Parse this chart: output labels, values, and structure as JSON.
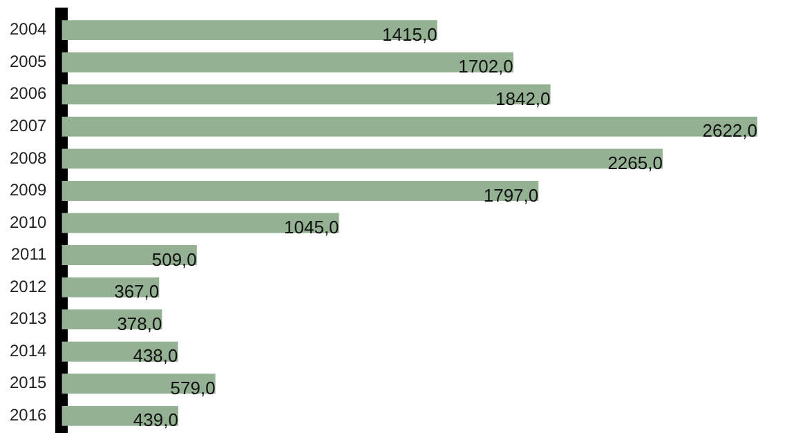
{
  "chart_data": {
    "type": "bar",
    "orientation": "horizontal",
    "tick_labels": "y",
    "categories": [
      "2004",
      "2005",
      "2006",
      "2007",
      "2008",
      "2009",
      "2010",
      "2011",
      "2012",
      "2013",
      "2014",
      "2015",
      "2016"
    ],
    "values": [
      1415.0,
      1702.0,
      1842.0,
      2622.0,
      2265.0,
      1797.0,
      1045.0,
      509.0,
      367.0,
      378.0,
      438.0,
      579.0,
      439.0
    ],
    "value_labels": [
      "1415,0",
      "1702,0",
      "1842,0",
      "2622,0",
      "2265,0",
      "1797,0",
      "1045,0",
      "509,0",
      "367,0",
      "378,0",
      "438,0",
      "579,0",
      "439,0"
    ],
    "color": "#94b193"
  }
}
